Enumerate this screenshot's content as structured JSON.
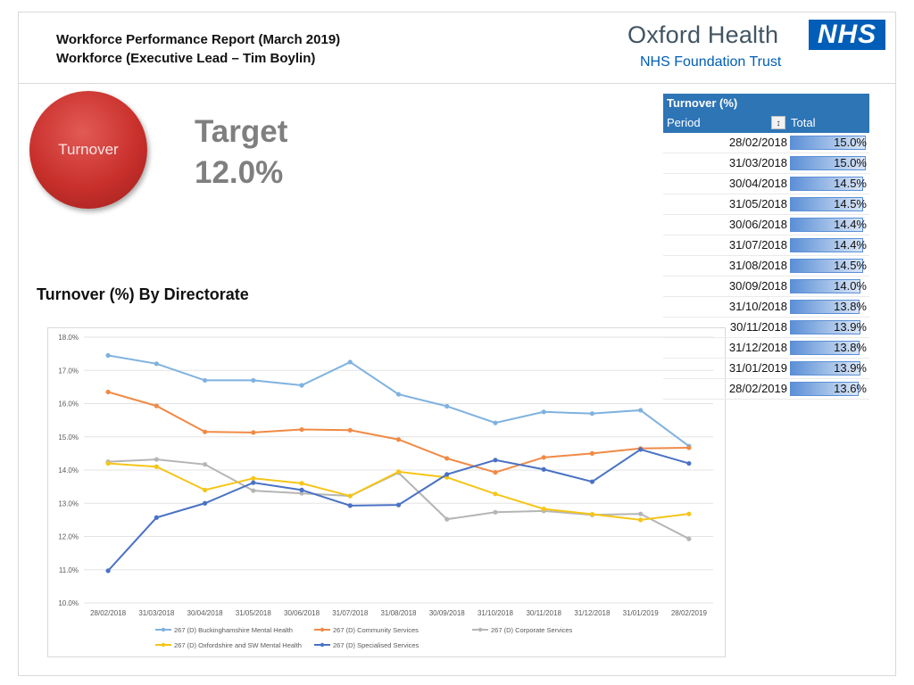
{
  "header": {
    "title_line1": "Workforce Performance Report (March 2019)",
    "title_line2": "Workforce (Executive Lead – Tim Boylin)"
  },
  "logo": {
    "org_name": "Oxford Health",
    "nhs": "NHS",
    "trust": "NHS Foundation Trust"
  },
  "kpi": {
    "name": "Turnover",
    "target_label": "Target",
    "target_value": "12.0%"
  },
  "section_title": "Turnover (%) By Directorate",
  "table": {
    "title": "Turnover (%)",
    "col_period": "Period",
    "col_total": "Total",
    "sort_icon": "sort-icon",
    "rows": [
      {
        "period": "28/02/2018",
        "total": "15.0%",
        "value": 15.0
      },
      {
        "period": "31/03/2018",
        "total": "15.0%",
        "value": 15.0
      },
      {
        "period": "30/04/2018",
        "total": "14.5%",
        "value": 14.5
      },
      {
        "period": "31/05/2018",
        "total": "14.5%",
        "value": 14.5
      },
      {
        "period": "30/06/2018",
        "total": "14.4%",
        "value": 14.4
      },
      {
        "period": "31/07/2018",
        "total": "14.4%",
        "value": 14.4
      },
      {
        "period": "31/08/2018",
        "total": "14.5%",
        "value": 14.5
      },
      {
        "period": "30/09/2018",
        "total": "14.0%",
        "value": 14.0
      },
      {
        "period": "31/10/2018",
        "total": "13.8%",
        "value": 13.8
      },
      {
        "period": "30/11/2018",
        "total": "13.9%",
        "value": 13.9
      },
      {
        "period": "31/12/2018",
        "total": "13.8%",
        "value": 13.8
      },
      {
        "period": "31/01/2019",
        "total": "13.9%",
        "value": 13.9
      },
      {
        "period": "28/02/2019",
        "total": "13.6%",
        "value": 13.6
      }
    ]
  },
  "chart_data": {
    "type": "line",
    "title": "",
    "xlabel": "",
    "ylabel": "",
    "ylim": [
      10.0,
      18.0
    ],
    "yticks": [
      "10.0%",
      "11.0%",
      "12.0%",
      "13.0%",
      "14.0%",
      "15.0%",
      "16.0%",
      "17.0%",
      "18.0%"
    ],
    "grid": true,
    "legend": "bottom",
    "categories": [
      "28/02/2018",
      "31/03/2018",
      "30/04/2018",
      "31/05/2018",
      "30/06/2018",
      "31/07/2018",
      "31/08/2018",
      "30/09/2018",
      "31/10/2018",
      "30/11/2018",
      "31/12/2018",
      "31/01/2019",
      "28/02/2019"
    ],
    "series": [
      {
        "name": "267 (D) Buckinghamshire Mental Health",
        "color": "#7fb2df",
        "values": [
          17.45,
          17.2,
          16.7,
          16.7,
          16.55,
          17.25,
          16.28,
          15.92,
          15.42,
          15.75,
          15.7,
          15.8,
          14.72
        ]
      },
      {
        "name": "267 (D) Community Services",
        "color": "#f08a45",
        "values": [
          16.35,
          15.93,
          15.15,
          15.13,
          15.22,
          15.2,
          14.92,
          14.35,
          13.93,
          14.38,
          14.5,
          14.65,
          14.67
        ]
      },
      {
        "name": "267 (D) Corporate Services",
        "color": "#b5b5b5",
        "values": [
          14.25,
          14.32,
          14.17,
          13.38,
          13.3,
          13.22,
          13.92,
          12.52,
          12.73,
          12.77,
          12.65,
          12.68,
          11.93
        ]
      },
      {
        "name": "267 (D) Oxfordshire and SW Mental Health",
        "color": "#f5c518",
        "values": [
          14.2,
          14.1,
          13.4,
          13.75,
          13.6,
          13.22,
          13.95,
          13.78,
          13.28,
          12.83,
          12.67,
          12.5,
          12.68
        ]
      },
      {
        "name": "267 (D) Specialised Services",
        "color": "#4a72c4",
        "values": [
          10.97,
          12.57,
          13.0,
          13.62,
          13.4,
          12.93,
          12.95,
          13.87,
          14.3,
          14.02,
          13.65,
          14.62,
          14.2
        ]
      }
    ]
  }
}
